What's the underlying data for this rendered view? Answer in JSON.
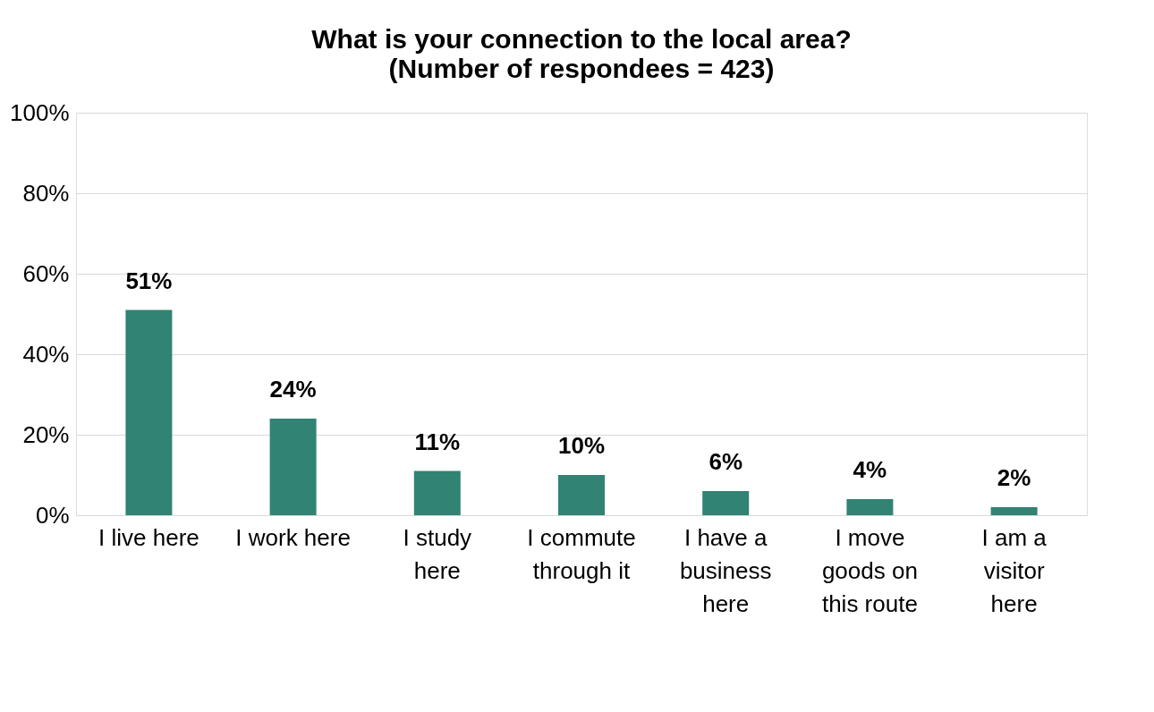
{
  "chart_data": {
    "type": "bar",
    "title": "What is your connection to the local area?",
    "subtitle": "(Number of respondees = 423)",
    "categories": [
      "I live here",
      "I work here",
      "I study here",
      "I commute through it",
      "I have a business here",
      "I move goods on this route",
      "I am a visitor here"
    ],
    "values": [
      51,
      24,
      11,
      10,
      6,
      4,
      2
    ],
    "value_labels": [
      "51%",
      "24%",
      "11%",
      "10%",
      "6%",
      "4%",
      "2%"
    ],
    "color": "#318373",
    "ylim": [
      0,
      100
    ],
    "yticks": [
      {
        "value": 0,
        "label": "0%"
      },
      {
        "value": 20,
        "label": "20%"
      },
      {
        "value": 40,
        "label": "40%"
      },
      {
        "value": 60,
        "label": "60%"
      },
      {
        "value": 80,
        "label": "80%"
      },
      {
        "value": 100,
        "label": "100%"
      }
    ],
    "grid": "y"
  }
}
